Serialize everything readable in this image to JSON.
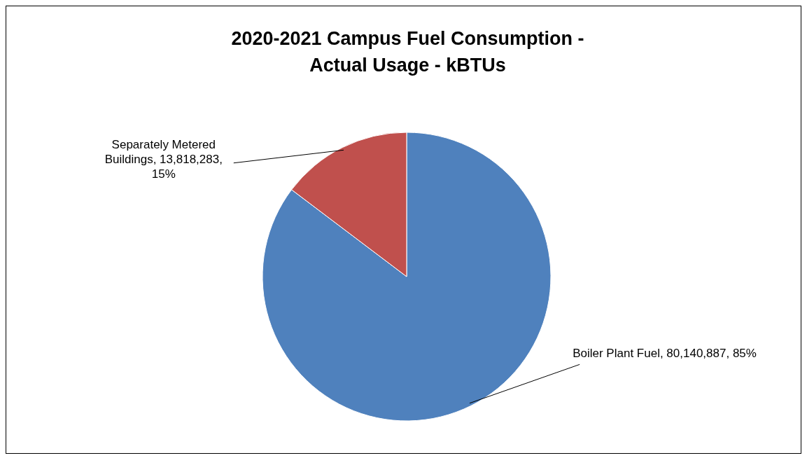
{
  "chart_data": {
    "type": "pie",
    "title": "2020-2021 Campus Fuel Consumption - Actual Usage - kBTUs",
    "categories": [
      "Boiler Plant Fuel",
      "Separately Metered Buildings"
    ],
    "values": [
      80140887,
      13818283
    ],
    "colors": [
      "#4f81bd",
      "#c0504d"
    ],
    "value_labels": [
      "80,140,887, 85%",
      "13,818,283, 15%"
    ]
  }
}
